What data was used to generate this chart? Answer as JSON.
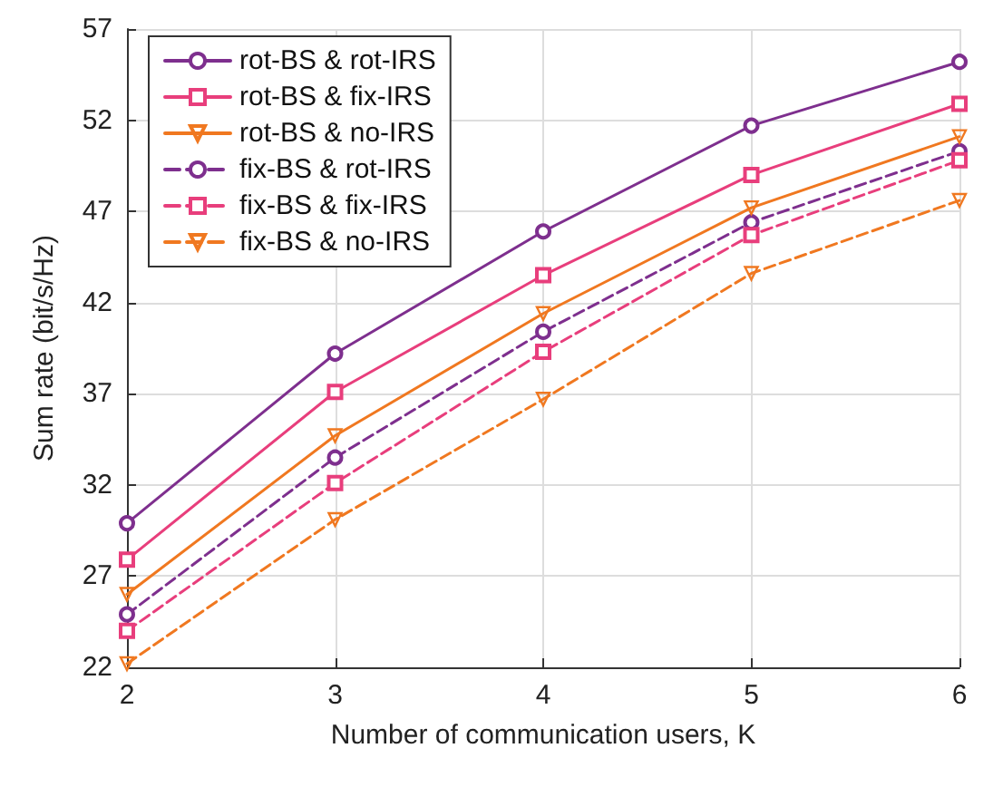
{
  "chart_data": {
    "type": "line",
    "xlabel": "Number of communication users, K",
    "ylabel": "Sum rate (bit/s/Hz)",
    "x": [
      2,
      3,
      4,
      5,
      6
    ],
    "xlim": [
      2,
      6
    ],
    "xticks": [
      2,
      3,
      4,
      5,
      6
    ],
    "ylim": [
      22,
      57
    ],
    "yticks": [
      22,
      27,
      32,
      37,
      42,
      47,
      52,
      57
    ],
    "grid": true,
    "legend": "top left",
    "series": [
      {
        "name": "rot-BS & rot-IRS",
        "color": "#7e2f8e",
        "marker": "circle",
        "line_style": "solid",
        "values": [
          29.9,
          39.2,
          45.9,
          51.7,
          55.2
        ]
      },
      {
        "name": "rot-BS & fix-IRS",
        "color": "#e83e7c",
        "marker": "square",
        "line_style": "solid",
        "values": [
          27.9,
          37.1,
          43.5,
          49.0,
          52.9
        ]
      },
      {
        "name": "rot-BS & no-IRS",
        "color": "#f07820",
        "marker": "triangle",
        "line_style": "solid",
        "values": [
          26.0,
          34.7,
          41.4,
          47.2,
          51.1
        ]
      },
      {
        "name": "fix-BS & rot-IRS",
        "color": "#7e2f8e",
        "marker": "circle",
        "line_style": "dashed",
        "values": [
          24.9,
          33.5,
          40.4,
          46.4,
          50.3
        ]
      },
      {
        "name": "fix-BS & fix-IRS",
        "color": "#e83e7c",
        "marker": "square",
        "line_style": "dashed",
        "values": [
          24.0,
          32.1,
          39.3,
          45.7,
          49.8
        ]
      },
      {
        "name": "fix-BS & no-IRS",
        "color": "#f07820",
        "marker": "triangle",
        "line_style": "dashed",
        "values": [
          22.2,
          30.1,
          36.7,
          43.6,
          47.6
        ]
      }
    ]
  }
}
